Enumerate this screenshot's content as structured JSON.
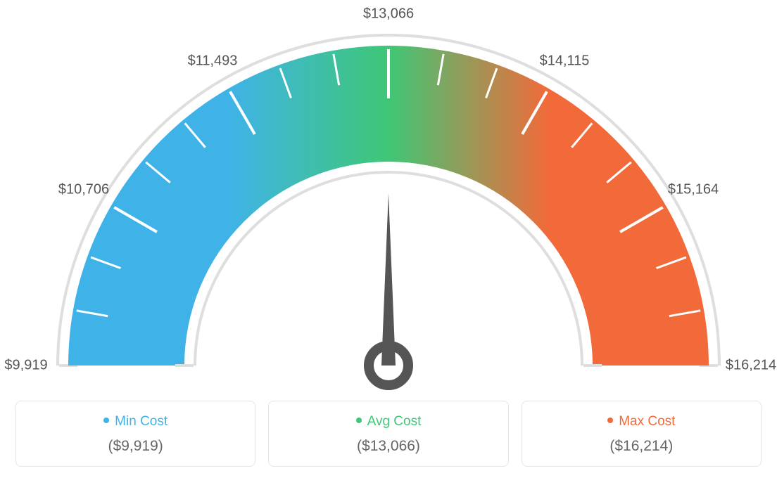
{
  "gauge": {
    "type": "gauge",
    "min_value": 9919,
    "max_value": 16214,
    "avg_value": 13066,
    "needle_value": 13066,
    "tick_labels": [
      "$9,919",
      "$10,706",
      "$11,493",
      "$13,066",
      "$14,115",
      "$15,164",
      "$16,214"
    ],
    "tick_label_angles_deg": [
      180,
      150,
      120,
      90,
      60,
      30,
      0
    ],
    "gradient_colors": {
      "start": "#3fb3e8",
      "mid": "#3fc776",
      "end": "#f26a3a"
    },
    "outer_arc_color": "#dedede",
    "inner_arc_color": "#dedede",
    "tick_color": "#ffffff",
    "background_color": "#ffffff",
    "label_color": "#555555",
    "label_fontsize": 20,
    "needle_color": "#555555"
  },
  "legend": {
    "min": {
      "dot_color": "#3fb3e8",
      "title": "Min Cost",
      "value": "($9,919)"
    },
    "avg": {
      "dot_color": "#3fc776",
      "title": "Avg Cost",
      "value": "($13,066)"
    },
    "max": {
      "dot_color": "#f26a3a",
      "title": "Max Cost",
      "value": "($16,214)"
    }
  }
}
